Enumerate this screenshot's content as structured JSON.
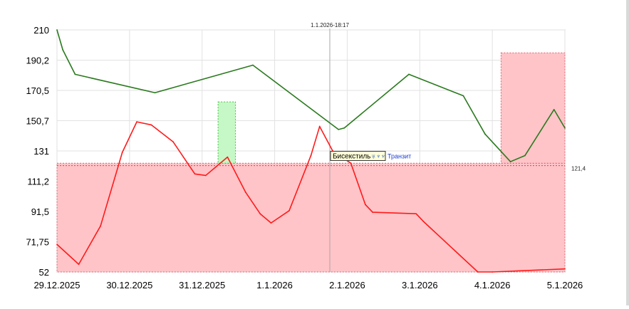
{
  "chart_data": {
    "type": "line",
    "title": "",
    "xlabel": "",
    "ylabel": "",
    "x_ticks": [
      "29.12.2025",
      "30.12.2025",
      "31.12.2025",
      "1.1.2026",
      "2.1.2026",
      "3.1.2026",
      "4.1.2026",
      "5.1.2026"
    ],
    "y_ticks": [
      "210",
      "190,2",
      "170,5",
      "150,7",
      "131",
      "111,2",
      "91,5",
      "71,75",
      "52"
    ],
    "ylim": [
      52,
      210
    ],
    "xlim": [
      0,
      7
    ],
    "grid": true,
    "legend": "none",
    "cursor": {
      "label": "1.1.2026-18:17",
      "x": 3.76
    },
    "reference_line": {
      "value": 121.4,
      "label": "121,4",
      "color": "#e04040"
    },
    "annotation": {
      "text": "Бисекстиль",
      "symbols": "♅♆♆",
      "suffix": "Транзит",
      "x": 3.76,
      "y": 128
    },
    "shaded_regions": [
      {
        "x0": 0,
        "x1": 7,
        "y0": 52,
        "y1": 123,
        "color": "#ffc4c8",
        "edge": "#e06070"
      },
      {
        "x0": 6.12,
        "x1": 7.0,
        "y0": 123,
        "y1": 195,
        "color": "#ffc4c8",
        "edge": "#e06070"
      },
      {
        "x0": 2.22,
        "x1": 2.46,
        "y0": 123,
        "y1": 163,
        "color": "#c6f7c6",
        "edge": "#4cbf4c"
      }
    ],
    "series": [
      {
        "color": "#2a7a1e",
        "x": [
          0,
          0.08,
          0.25,
          1.35,
          2.7,
          3.88,
          3.96,
          4.85,
          5.6,
          5.9,
          6.25,
          6.45,
          6.85,
          7.0
        ],
        "values": [
          210,
          197,
          181,
          169,
          187,
          145,
          146,
          181,
          167,
          142,
          124,
          128,
          158,
          146
        ]
      },
      {
        "color": "#ff1a1a",
        "x": [
          0,
          0.3,
          0.6,
          0.9,
          1.1,
          1.3,
          1.6,
          1.9,
          2.05,
          2.25,
          2.35,
          2.6,
          2.8,
          2.95,
          3.2,
          3.5,
          3.62,
          3.8,
          4.05,
          4.25,
          4.35,
          4.95,
          5.05,
          5.8,
          6.0,
          7.0
        ],
        "values": [
          70,
          57,
          82,
          130,
          150,
          148,
          137,
          116,
          115,
          123,
          127,
          104,
          90,
          84,
          92,
          128,
          147,
          131,
          123,
          96,
          91,
          90,
          85,
          52,
          52,
          54
        ]
      }
    ]
  }
}
